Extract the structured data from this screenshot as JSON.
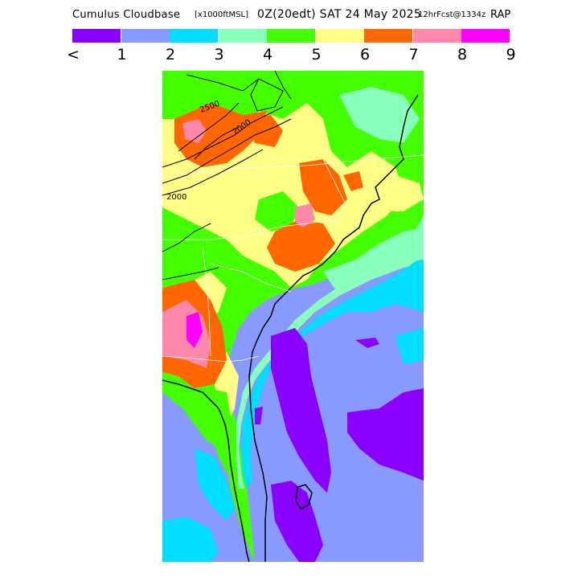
{
  "title": {
    "main": "Cumulus Cloudbase",
    "units": "[x1000ftMSL]",
    "time": "0Z(20edt) SAT 24 May 2025",
    "forecast": "12hrFcst@1334z",
    "model": "RAP"
  },
  "legend": {
    "colors": [
      "#8a00ff",
      "#8899ff",
      "#00ddff",
      "#88ffbb",
      "#44ff00",
      "#ffff88",
      "#ff6600",
      "#ff88aa",
      "#ff00ff"
    ],
    "tick_labels": [
      "<",
      "1",
      "2",
      "3",
      "4",
      "5",
      "6",
      "7",
      "8",
      "9"
    ]
  },
  "contour_labels": [
    "2000",
    "2000",
    "2500"
  ]
}
